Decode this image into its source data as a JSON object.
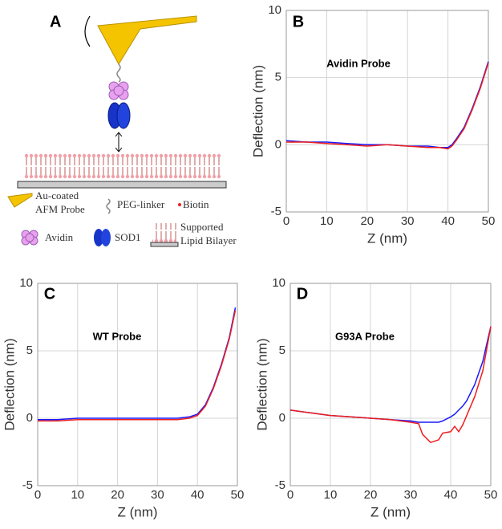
{
  "panel_a": {
    "label": "A",
    "legend": {
      "probe": [
        "Au-coated",
        "AFM Probe"
      ],
      "linker": "PEG-linker",
      "biotin": "Biotin",
      "avidin": "Avidin",
      "sod1": "SOD1",
      "bilayer": [
        "Supported",
        "Lipid Bilayer"
      ]
    }
  },
  "chart_data": [
    {
      "type": "line",
      "panel_label": "B",
      "annotation": "Avidin Probe",
      "xlabel": "Z (nm)",
      "ylabel": "Deflection (nm)",
      "x": [
        0,
        5,
        10,
        15,
        20,
        25,
        30,
        35,
        38,
        40,
        41,
        42,
        44,
        46,
        48,
        50
      ],
      "series": [
        {
          "color": "#1a1aff",
          "values": [
            0.3,
            0.2,
            0.2,
            0.1,
            0.0,
            0.0,
            -0.1,
            -0.1,
            -0.2,
            -0.2,
            0.0,
            0.4,
            1.3,
            2.7,
            4.3,
            6.2
          ]
        },
        {
          "color": "#ee1c1c",
          "values": [
            0.2,
            0.2,
            0.1,
            0.0,
            -0.1,
            0.0,
            -0.1,
            -0.2,
            -0.2,
            -0.3,
            -0.1,
            0.3,
            1.2,
            2.6,
            4.2,
            6.1
          ]
        }
      ],
      "xlim": [
        0,
        50
      ],
      "ylim": [
        -5,
        10
      ],
      "xticks": [
        0,
        10,
        20,
        30,
        40,
        50
      ],
      "yticks": [
        -5,
        0,
        5,
        10
      ],
      "grid": true
    },
    {
      "type": "line",
      "panel_label": "C",
      "annotation": "WT Probe",
      "xlabel": "Z (nm)",
      "ylabel": "Deflection (nm)",
      "x": [
        0,
        5,
        10,
        15,
        20,
        25,
        30,
        35,
        38,
        40,
        42,
        44,
        46,
        48,
        49.5
      ],
      "series": [
        {
          "color": "#1a1aff",
          "values": [
            -0.1,
            -0.1,
            0.0,
            0.0,
            0.0,
            0.0,
            0.0,
            0.0,
            0.1,
            0.3,
            1.0,
            2.3,
            4.0,
            6.0,
            8.2
          ]
        },
        {
          "color": "#ee1c1c",
          "values": [
            -0.2,
            -0.2,
            -0.1,
            -0.1,
            -0.1,
            -0.1,
            -0.1,
            -0.1,
            0.0,
            0.2,
            0.9,
            2.2,
            3.9,
            5.9,
            8.0
          ]
        }
      ],
      "xlim": [
        0,
        50
      ],
      "ylim": [
        -5,
        10
      ],
      "xticks": [
        0,
        10,
        20,
        30,
        40,
        50
      ],
      "yticks": [
        -5,
        0,
        5,
        10
      ],
      "grid": true
    },
    {
      "type": "line",
      "panel_label": "D",
      "annotation": "G93A Probe",
      "xlabel": "Z (nm)",
      "ylabel": "Deflection (nm)",
      "x": [
        0,
        5,
        10,
        15,
        20,
        25,
        30,
        32,
        33,
        35,
        37,
        38,
        40,
        41,
        42,
        43,
        44,
        46,
        48,
        50
      ],
      "series": [
        {
          "color": "#1a1aff",
          "values": [
            0.6,
            0.4,
            0.2,
            0.1,
            0.0,
            -0.1,
            -0.2,
            -0.3,
            -0.3,
            -0.3,
            -0.3,
            -0.2,
            0.1,
            0.3,
            0.6,
            0.9,
            1.3,
            2.5,
            4.2,
            6.8
          ]
        },
        {
          "color": "#ee1c1c",
          "values": [
            0.6,
            0.4,
            0.2,
            0.1,
            0.0,
            -0.1,
            -0.3,
            -0.4,
            -1.2,
            -1.8,
            -1.6,
            -1.1,
            -1.0,
            -0.6,
            -1.0,
            -0.5,
            0.2,
            1.6,
            3.5,
            6.8
          ]
        }
      ],
      "xlim": [
        0,
        50
      ],
      "ylim": [
        -5,
        10
      ],
      "xticks": [
        0,
        10,
        20,
        30,
        40,
        50
      ],
      "yticks": [
        -5,
        0,
        5,
        10
      ],
      "grid": true
    }
  ]
}
